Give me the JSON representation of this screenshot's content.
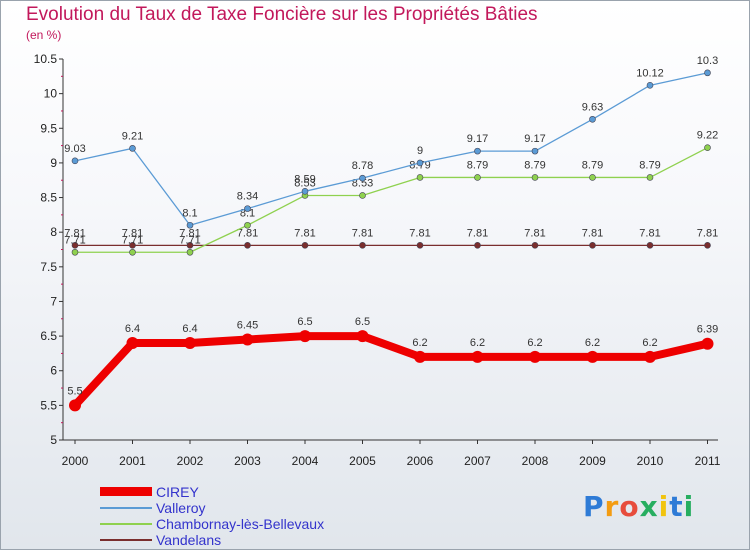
{
  "chart_data": {
    "type": "line",
    "title": "Evolution du Taux de Taxe Foncière sur les Propriétés Bâties",
    "subtitle": "(en %)",
    "categories": [
      "2000",
      "2001",
      "2002",
      "2003",
      "2004",
      "2005",
      "2006",
      "2007",
      "2008",
      "2009",
      "2010",
      "2011"
    ],
    "ylim": [
      5,
      10.5
    ],
    "yticks": [
      "5",
      "5.5",
      "6",
      "6.5",
      "7",
      "7.5",
      "8",
      "8.5",
      "9",
      "9.5",
      "10",
      "10.5"
    ],
    "grid": false,
    "legend_position": "bottom-left",
    "series": [
      {
        "name": "Vandelans",
        "color": "#7a2e2e",
        "values": [
          7.81,
          7.81,
          7.81,
          7.81,
          7.81,
          7.81,
          7.81,
          7.81,
          7.81,
          7.81,
          7.81,
          7.81
        ],
        "labels": [
          "7.81",
          "7.81",
          "7.81",
          "7.81",
          "7.81",
          "7.81",
          "7.81",
          "7.81",
          "7.81",
          "7.81",
          "7.81",
          "7.81"
        ]
      },
      {
        "name": "Chambornay-lès-Bellevaux",
        "color": "#8fd14f",
        "values": [
          7.71,
          7.71,
          7.71,
          8.1,
          8.53,
          8.53,
          8.79,
          8.79,
          8.79,
          8.79,
          8.79,
          9.22
        ],
        "labels": [
          "7.71",
          "7.71",
          "7.71",
          "8.1",
          "8.53",
          "8.53",
          "8.79",
          "8.79",
          "8.79",
          "8.79",
          "8.79",
          "9.22"
        ]
      },
      {
        "name": "Valleroy",
        "color": "#5b9bd5",
        "values": [
          9.03,
          9.21,
          8.1,
          8.34,
          8.59,
          8.78,
          9,
          9.17,
          9.17,
          9.63,
          10.12,
          10.3
        ],
        "labels": [
          "9.03",
          "9.21",
          "8.1",
          "8.34",
          "8.59",
          "8.78",
          "9",
          "9.17",
          "9.17",
          "9.63",
          "10.12",
          "10.3"
        ]
      },
      {
        "name": "CIREY",
        "color": "#ee0000",
        "values": [
          5.5,
          6.4,
          6.4,
          6.45,
          6.5,
          6.5,
          6.2,
          6.2,
          6.2,
          6.2,
          6.2,
          6.39
        ],
        "labels": [
          "5.5",
          "6.4",
          "6.4",
          "6.45",
          "6.5",
          "6.5",
          "6.2",
          "6.2",
          "6.2",
          "6.2",
          "6.2",
          "6.39"
        ]
      }
    ]
  },
  "legend": {
    "items": [
      {
        "label": "CIREY"
      },
      {
        "label": "Valleroy"
      },
      {
        "label": "Chambornay-lès-Bellevaux"
      },
      {
        "label": "Vandelans"
      }
    ]
  },
  "logo": {
    "text": "Proxiti",
    "letters": [
      "P",
      "r",
      "o",
      "x",
      "i",
      "t",
      "i"
    ],
    "letter_colors": [
      "#2e7bd6",
      "#f39c12",
      "#e74c3c",
      "#27ae60",
      "#f1c40f",
      "#2e7bd6",
      "#27ae60"
    ]
  }
}
